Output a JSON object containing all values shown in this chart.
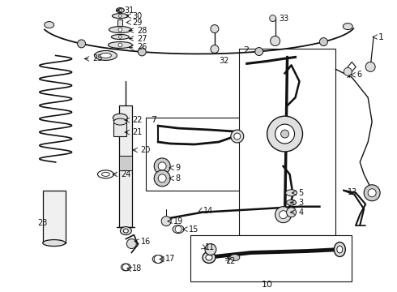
{
  "bg_color": "#ffffff",
  "line_color": "#111111",
  "fig_width": 4.9,
  "fig_height": 3.6,
  "dpi": 100
}
